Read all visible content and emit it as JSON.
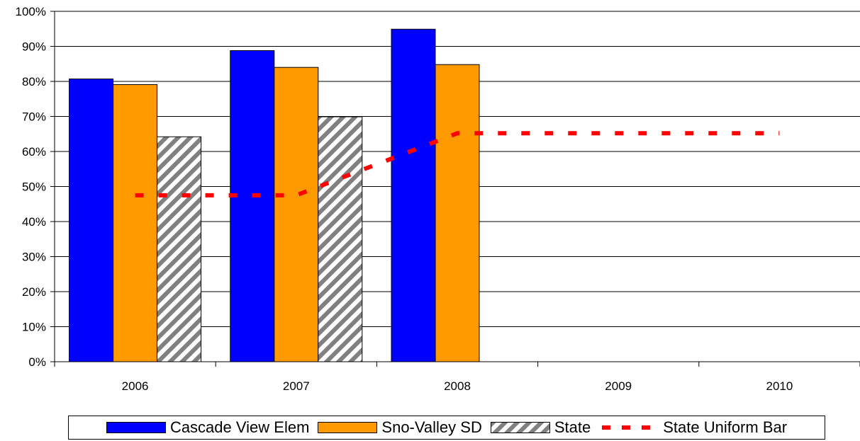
{
  "chart_data": {
    "type": "bar",
    "title": "",
    "categories": [
      "2006",
      "2007",
      "2008",
      "2009",
      "2010"
    ],
    "y_ticks": [
      "0%",
      "10%",
      "20%",
      "30%",
      "40%",
      "50%",
      "60%",
      "70%",
      "80%",
      "90%",
      "100%"
    ],
    "ylim": [
      0,
      100
    ],
    "y_unit": "percent",
    "grid": true,
    "legend_position": "bottom",
    "series": [
      {
        "name": "Cascade View Elem",
        "kind": "bar",
        "color": "#0000ff",
        "values": [
          80.7,
          88.8,
          94.9,
          null,
          null
        ]
      },
      {
        "name": "Sno-Valley SD",
        "kind": "bar",
        "color": "#ff9900",
        "values": [
          79.1,
          84.0,
          84.8,
          null,
          null
        ]
      },
      {
        "name": "State",
        "kind": "bar",
        "color": "#a0a0a0",
        "pattern": "diagonal-stripes",
        "values": [
          64.2,
          69.9,
          null,
          null,
          null
        ]
      },
      {
        "name": "State Uniform Bar",
        "kind": "line",
        "color": "#ff0000",
        "style": "dashed",
        "values": [
          47.5,
          47.5,
          65.2,
          65.2,
          65.2
        ]
      }
    ]
  }
}
